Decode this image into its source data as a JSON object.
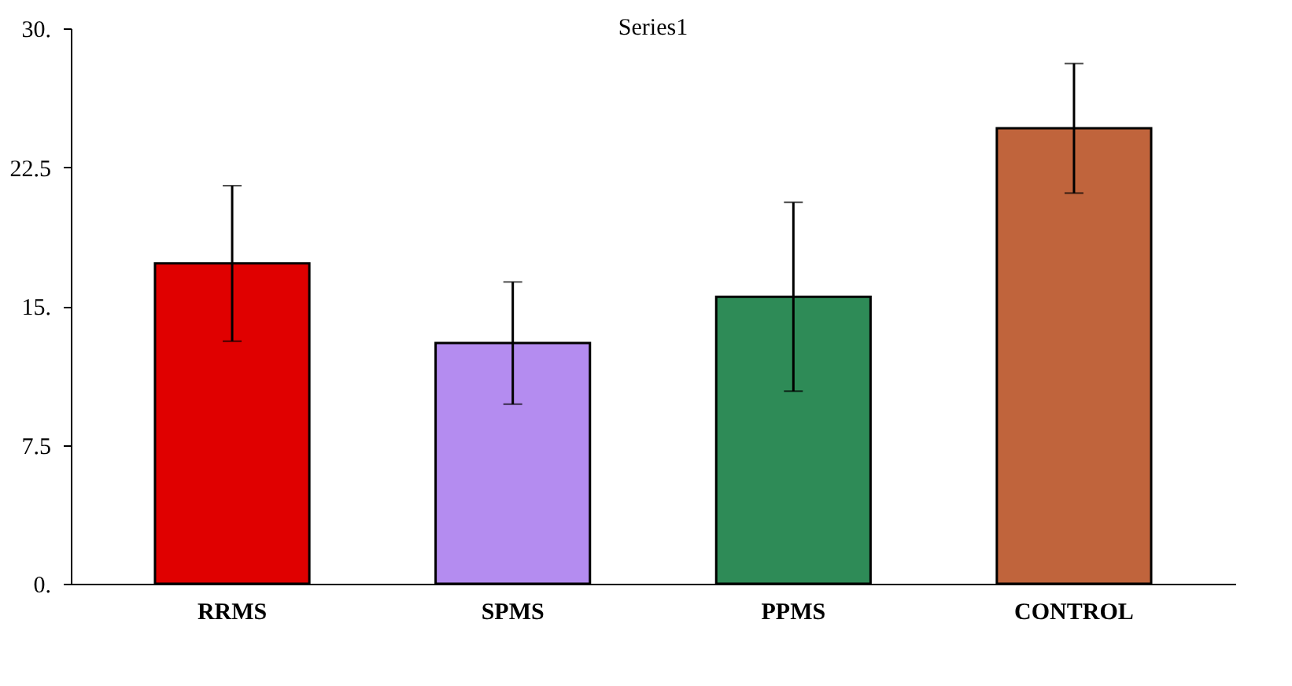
{
  "chart_data": {
    "type": "bar",
    "title": "Series1",
    "categories": [
      "RRMS",
      "SPMS",
      "PPMS",
      "CONTROL"
    ],
    "values": [
      17.3,
      13.0,
      15.5,
      24.6
    ],
    "errors": [
      4.2,
      3.3,
      5.1,
      3.5
    ],
    "colors": [
      "#e00000",
      "#b48cf0",
      "#2e8b57",
      "#c0643c"
    ],
    "ylim": [
      0,
      30
    ],
    "yticks": [
      {
        "value": 0,
        "label": "0."
      },
      {
        "value": 7.5,
        "label": "7.5"
      },
      {
        "value": 15,
        "label": "15."
      },
      {
        "value": 22.5,
        "label": "22.5"
      },
      {
        "value": 30,
        "label": "30."
      }
    ],
    "grid": false,
    "legend": false
  }
}
